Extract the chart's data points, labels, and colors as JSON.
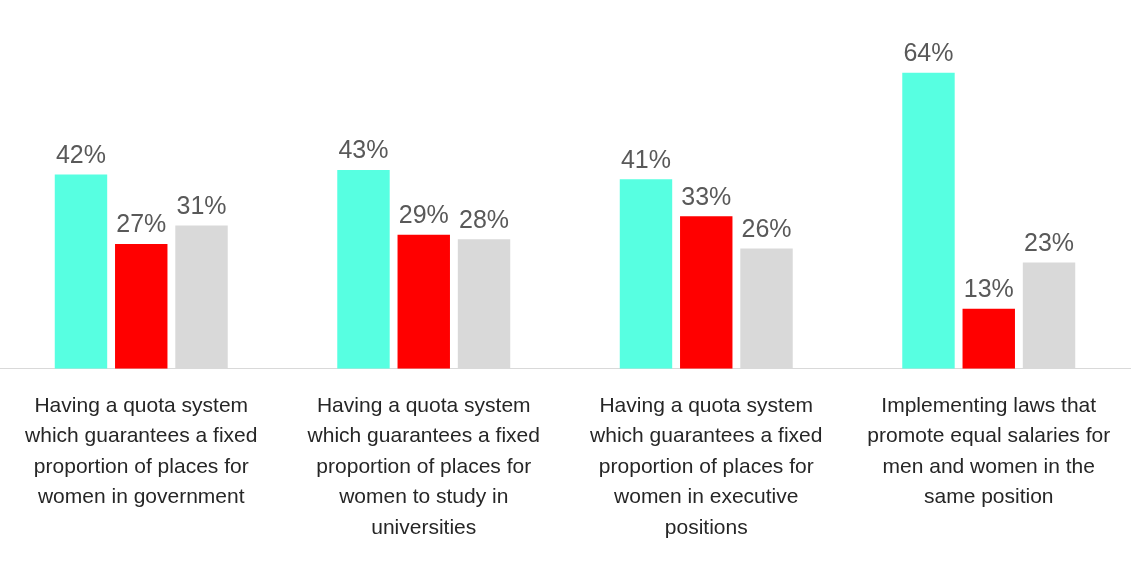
{
  "chart_data": {
    "type": "bar",
    "categories": [
      "Having a quota system which guarantees a fixed proportion of places for women in government",
      "Having a quota system which guarantees a fixed proportion of places for women to study in universities",
      "Having a quota system which guarantees a fixed proportion of places for women in executive positions",
      "Implementing laws that promote equal salaries for men and women in the same position"
    ],
    "series": [
      {
        "color": "#57ffe1",
        "values": [
          42,
          43,
          41,
          64
        ],
        "value_labels": [
          "42%",
          "43%",
          "41%",
          "64%"
        ]
      },
      {
        "color": "#ff0000",
        "values": [
          27,
          29,
          33,
          13
        ],
        "value_labels": [
          "27%",
          "29%",
          "33%",
          "13%"
        ]
      },
      {
        "color": "#d9d9d9",
        "values": [
          31,
          28,
          26,
          23
        ],
        "value_labels": [
          "31%",
          "28%",
          "26%",
          "23%"
        ]
      }
    ],
    "legend": false,
    "grid": false,
    "tick_labels": "x"
  }
}
